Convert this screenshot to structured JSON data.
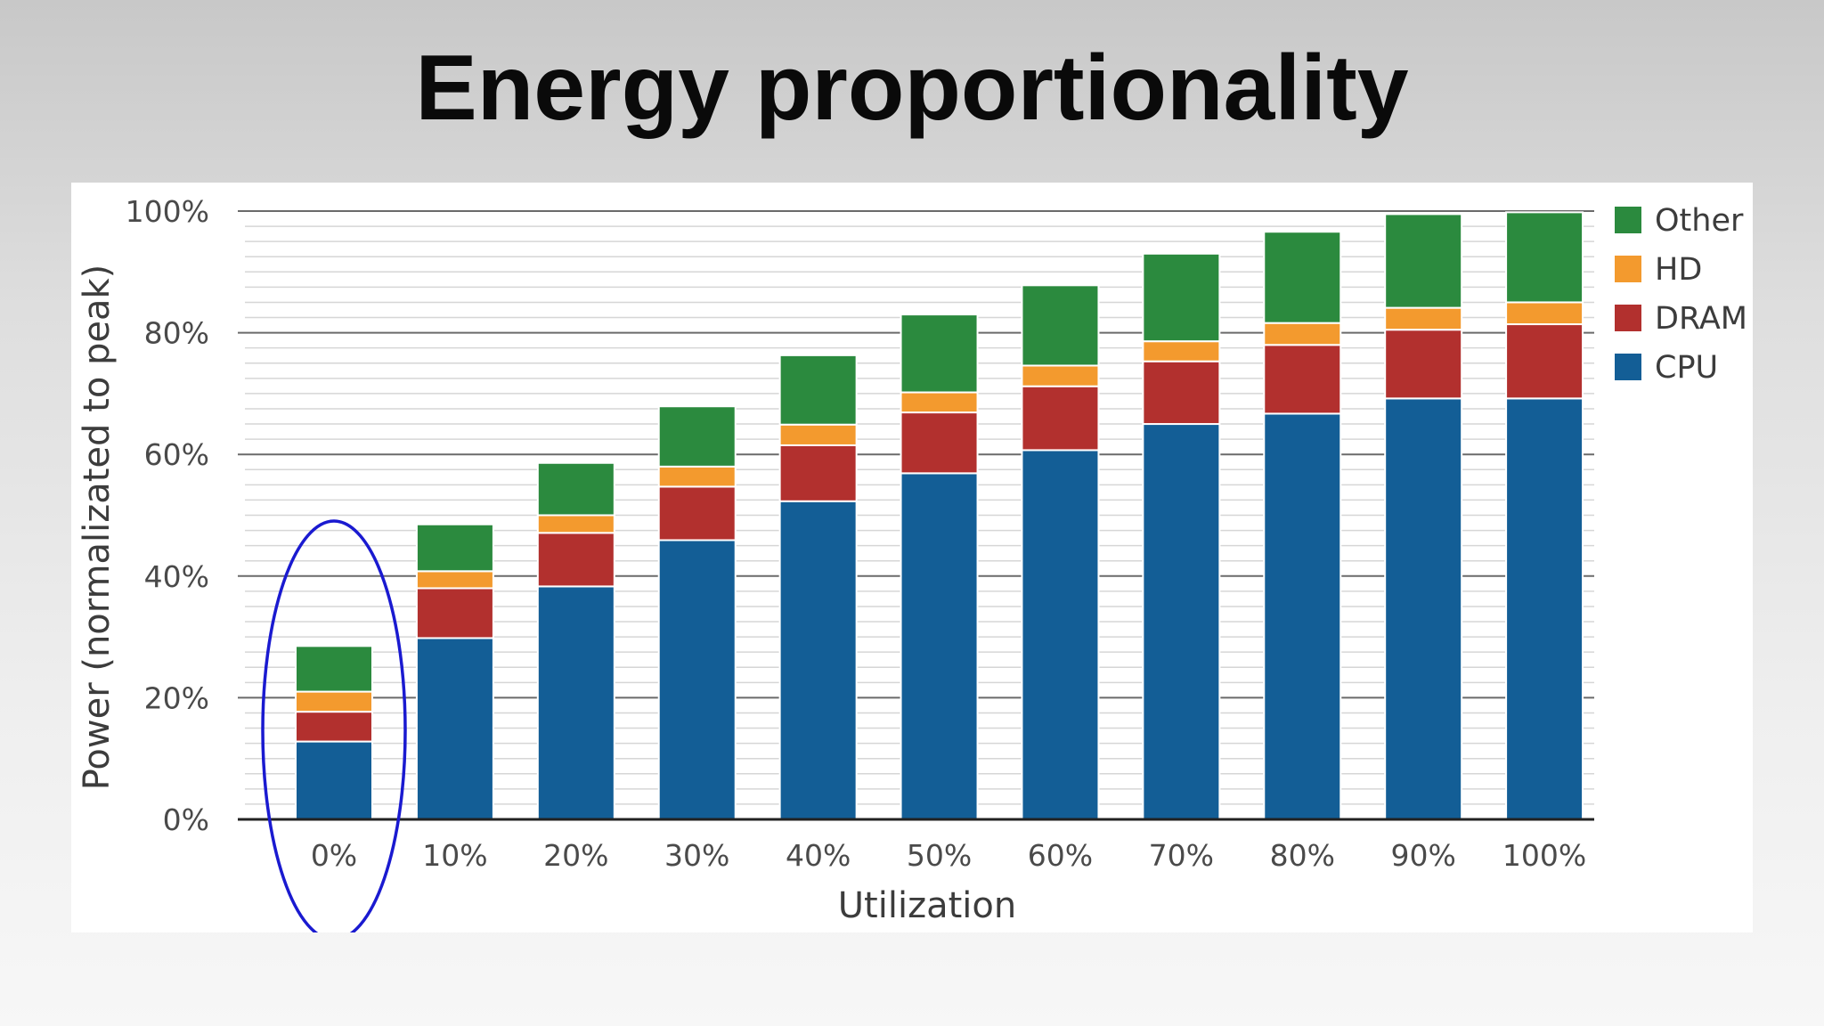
{
  "slide": {
    "title": "Energy proportionality"
  },
  "chart_data": {
    "type": "bar",
    "stacked": true,
    "title": "",
    "xlabel": "Utilization",
    "ylabel": "Power (normalizated to peak)",
    "categories": [
      "0%",
      "10%",
      "20%",
      "30%",
      "40%",
      "50%",
      "60%",
      "70%",
      "80%",
      "90%",
      "100%"
    ],
    "ylim": [
      0,
      100
    ],
    "yticks": [
      "0%",
      "20%",
      "40%",
      "60%",
      "80%",
      "100%"
    ],
    "series": [
      {
        "name": "CPU",
        "color": "#135e96",
        "values": [
          12.8,
          29.8,
          38.3,
          45.9,
          52.3,
          56.9,
          60.7,
          65.0,
          66.7,
          69.2,
          69.2
        ]
      },
      {
        "name": "DRAM",
        "color": "#b2302e",
        "values": [
          4.9,
          8.2,
          8.8,
          8.8,
          9.2,
          10.0,
          10.5,
          10.3,
          11.3,
          11.3,
          12.2
        ]
      },
      {
        "name": "HD",
        "color": "#f39a2e",
        "values": [
          3.3,
          2.8,
          2.9,
          3.3,
          3.4,
          3.3,
          3.4,
          3.3,
          3.6,
          3.6,
          3.6
        ]
      },
      {
        "name": "Other",
        "color": "#2b8a3e",
        "values": [
          7.5,
          7.7,
          8.6,
          9.9,
          11.4,
          12.8,
          13.2,
          14.4,
          15.0,
          15.4,
          14.8
        ]
      }
    ],
    "legend": {
      "position": "right",
      "entries": [
        "Other",
        "HD",
        "DRAM",
        "CPU"
      ]
    },
    "grid": true,
    "annotation": {
      "type": "ellipse",
      "target": "0%",
      "color": "#1a1ad0"
    }
  }
}
